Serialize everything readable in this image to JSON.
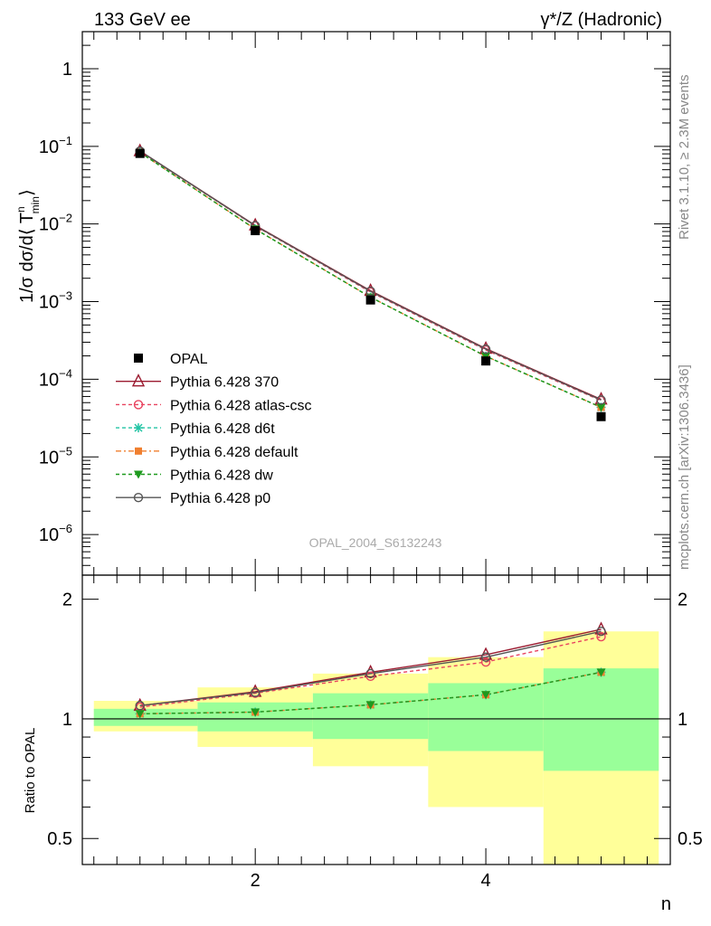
{
  "header": {
    "left": "133 GeV ee",
    "right": "γ*/Z (Hadronic)"
  },
  "side_labels": {
    "rivet": "Rivet 3.1.10, ≥ 2.3M events",
    "mcplots": "mcplots.cern.ch [arXiv:1306.3436]"
  },
  "watermark": "OPAL_2004_S6132243",
  "chart_data": [
    {
      "type": "line",
      "panel": "main",
      "ylabel": "1/σ dσ/d⟨ T",
      "ylabel_sup": "n",
      "ylabel_sub": "min",
      "ylabel_end": "⟩",
      "yscale": "log",
      "ylim": [
        3e-07,
        3
      ],
      "xlim": [
        0.5,
        5.6
      ],
      "ytick_labels": [
        {
          "base": "1",
          "exp": ""
        },
        {
          "base": "10",
          "exp": "−1"
        },
        {
          "base": "10",
          "exp": "−2"
        },
        {
          "base": "10",
          "exp": "−3"
        },
        {
          "base": "10",
          "exp": "−4"
        },
        {
          "base": "10",
          "exp": "−5"
        },
        {
          "base": "10",
          "exp": "−6"
        }
      ],
      "ytick_values": [
        1,
        0.1,
        0.01,
        0.001,
        0.0001,
        1e-05,
        1e-06
      ],
      "x": [
        1,
        2,
        3,
        4,
        5
      ],
      "data": {
        "name": "OPAL",
        "values": [
          0.081,
          0.0082,
          0.00105,
          0.000172,
          3.3e-05
        ]
      },
      "series": [
        {
          "name": "Pythia 6.428 370",
          "color": "#9b1b30",
          "dash": "",
          "marker": "triangle-open",
          "values": [
            0.087,
            0.0096,
            0.00138,
            0.000248,
            5.5e-05
          ]
        },
        {
          "name": "Pythia 6.428 atlas-csc",
          "color": "#e8435f",
          "dash": "4,3",
          "marker": "circle-open",
          "values": [
            0.086,
            0.0094,
            0.00133,
            0.000238,
            5.3e-05
          ]
        },
        {
          "name": "Pythia 6.428 d6t",
          "color": "#22c4a4",
          "dash": "4,3",
          "marker": "star",
          "values": [
            0.0835,
            0.0086,
            0.00114,
            0.000198,
            4.35e-05
          ]
        },
        {
          "name": "Pythia 6.428 default",
          "color": "#f07f2f",
          "dash": "6,3,2,3",
          "marker": "square",
          "values": [
            0.0835,
            0.0086,
            0.00114,
            0.000198,
            4.35e-05
          ]
        },
        {
          "name": "Pythia 6.428 dw",
          "color": "#1e9a1e",
          "dash": "4,3",
          "marker": "triangle-down",
          "values": [
            0.0835,
            0.0086,
            0.00114,
            0.000198,
            4.35e-05
          ]
        },
        {
          "name": "Pythia 6.428 p0",
          "color": "#555555",
          "dash": "",
          "marker": "circle-open",
          "values": [
            0.087,
            0.0095,
            0.00136,
            0.000244,
            5.4e-05
          ]
        }
      ]
    },
    {
      "type": "line",
      "panel": "ratio",
      "ylabel": "Ratio to OPAL",
      "xlabel": "n",
      "yscale": "log",
      "ylim": [
        0.43,
        2.3
      ],
      "xlim": [
        0.5,
        5.6
      ],
      "yticks": [
        {
          "value": 0.5,
          "label": "0.5"
        },
        {
          "value": 1,
          "label": "1"
        },
        {
          "value": 2,
          "label": "2"
        }
      ],
      "xticks": [
        {
          "value": 2,
          "label": "2"
        },
        {
          "value": 4,
          "label": "4"
        }
      ],
      "bands": [
        {
          "x0": 0.6,
          "x1": 1.5,
          "inner": [
            0.96,
            1.06
          ],
          "outer": [
            0.93,
            1.11
          ]
        },
        {
          "x0": 1.5,
          "x1": 2.5,
          "inner": [
            0.93,
            1.1
          ],
          "outer": [
            0.85,
            1.2
          ]
        },
        {
          "x0": 2.5,
          "x1": 3.5,
          "inner": [
            0.89,
            1.16
          ],
          "outer": [
            0.76,
            1.3
          ]
        },
        {
          "x0": 3.5,
          "x1": 4.5,
          "inner": [
            0.83,
            1.23
          ],
          "outer": [
            0.6,
            1.43
          ]
        },
        {
          "x0": 4.5,
          "x1": 5.5,
          "inner": [
            0.74,
            1.34
          ],
          "outer": [
            0.35,
            1.66
          ]
        }
      ],
      "series": [
        {
          "name": "Pythia 6.428 370",
          "values": [
            1.08,
            1.17,
            1.31,
            1.45,
            1.68
          ]
        },
        {
          "name": "Pythia 6.428 atlas-csc",
          "values": [
            1.07,
            1.16,
            1.28,
            1.39,
            1.61
          ]
        },
        {
          "name": "Pythia 6.428 d6t",
          "values": [
            1.03,
            1.04,
            1.085,
            1.15,
            1.31
          ]
        },
        {
          "name": "Pythia 6.428 default",
          "values": [
            1.03,
            1.04,
            1.085,
            1.15,
            1.31
          ]
        },
        {
          "name": "Pythia 6.428 dw",
          "values": [
            1.03,
            1.04,
            1.085,
            1.15,
            1.31
          ]
        },
        {
          "name": "Pythia 6.428 p0",
          "values": [
            1.08,
            1.165,
            1.3,
            1.43,
            1.66
          ]
        }
      ]
    }
  ]
}
